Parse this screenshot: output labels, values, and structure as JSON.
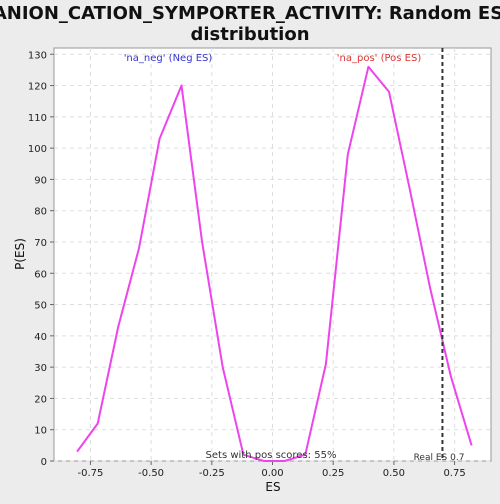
{
  "title_line1": "ANION_CATION_SYMPORTER_ACTIVITY: Random ES",
  "title_line2": "distribution",
  "colors": {
    "background": "#ececec",
    "plot_bg": "#ffffff",
    "curve": "#ee44ee",
    "neg_label": "#3333cc",
    "pos_label": "#dd3333",
    "grid": "#dddddd",
    "marker": "#333333"
  },
  "chart_data": {
    "type": "line",
    "xlabel": "ES",
    "ylabel": "P(ES)",
    "xlim": [
      -0.9,
      0.9
    ],
    "ylim": [
      0,
      132
    ],
    "x_ticks": [
      -0.75,
      -0.5,
      -0.25,
      0.0,
      0.25,
      0.5,
      0.75
    ],
    "x_tick_labels": [
      "-0.75",
      "-0.50",
      "-0.25",
      "0.00",
      "0.25",
      "0.50",
      "0.75"
    ],
    "y_ticks": [
      0,
      10,
      20,
      30,
      40,
      50,
      60,
      70,
      80,
      90,
      100,
      110,
      120,
      130
    ],
    "y_tick_labels": [
      "0",
      "10",
      "20",
      "30",
      "40",
      "50",
      "60",
      "70",
      "80",
      "90",
      "100",
      "110",
      "120",
      "130"
    ],
    "grid": true,
    "series": [
      {
        "x": [
          -0.805,
          -0.72,
          -0.635,
          -0.55,
          -0.465,
          -0.375,
          -0.29,
          -0.205,
          -0.12,
          -0.035,
          0.05,
          0.135,
          0.22,
          0.31,
          0.395,
          0.48,
          0.565,
          0.65,
          0.735,
          0.82
        ],
        "y": [
          3,
          12,
          43,
          68,
          103,
          120,
          70,
          30,
          2,
          0,
          0,
          2,
          31,
          98,
          126,
          118,
          87,
          55,
          27,
          5
        ]
      }
    ],
    "annotations": {
      "neg_label": "'na_neg' (Neg ES)",
      "pos_label": "'na_pos' (Pos ES)",
      "sets_text": "Sets with pos scores: 55%",
      "real_es_text": "Real ES 0.7",
      "real_es_value": 0.7
    }
  }
}
